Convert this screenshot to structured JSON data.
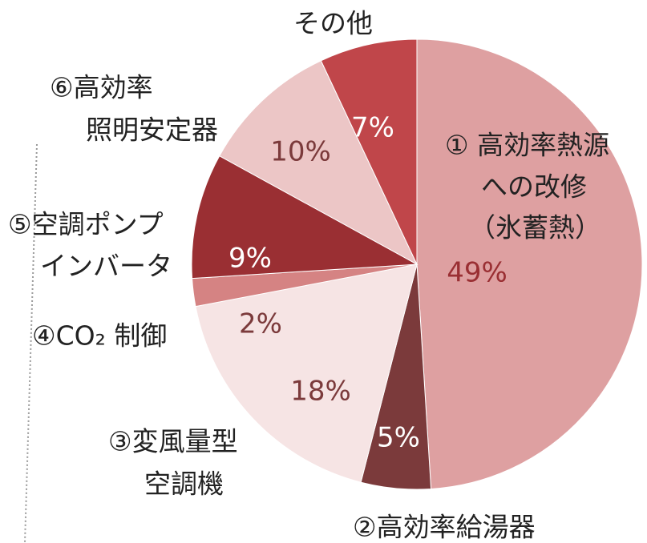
{
  "chart_data": {
    "type": "pie",
    "categories": [
      [
        "① 高効率熱源",
        "への改修",
        "（氷蓄熱）"
      ],
      [
        "②高効率給湯器"
      ],
      [
        "③変風量型",
        "空調機"
      ],
      [
        "④CO₂ 制御"
      ],
      [
        "⑤空調ポンプ",
        "インバータ"
      ],
      [
        "⑥高効率",
        "照明安定器"
      ],
      [
        "その他"
      ]
    ],
    "values": [
      49,
      5,
      18,
      2,
      9,
      10,
      7
    ],
    "value_labels": [
      "49%",
      "5%",
      "18%",
      "2%",
      "9%",
      "10%",
      "7%"
    ],
    "colors": [
      "#dea0a1",
      "#7b3a3b",
      "#f6e4e4",
      "#d58383",
      "#9a2f33",
      "#ecc6c6",
      "#c0464a"
    ]
  }
}
